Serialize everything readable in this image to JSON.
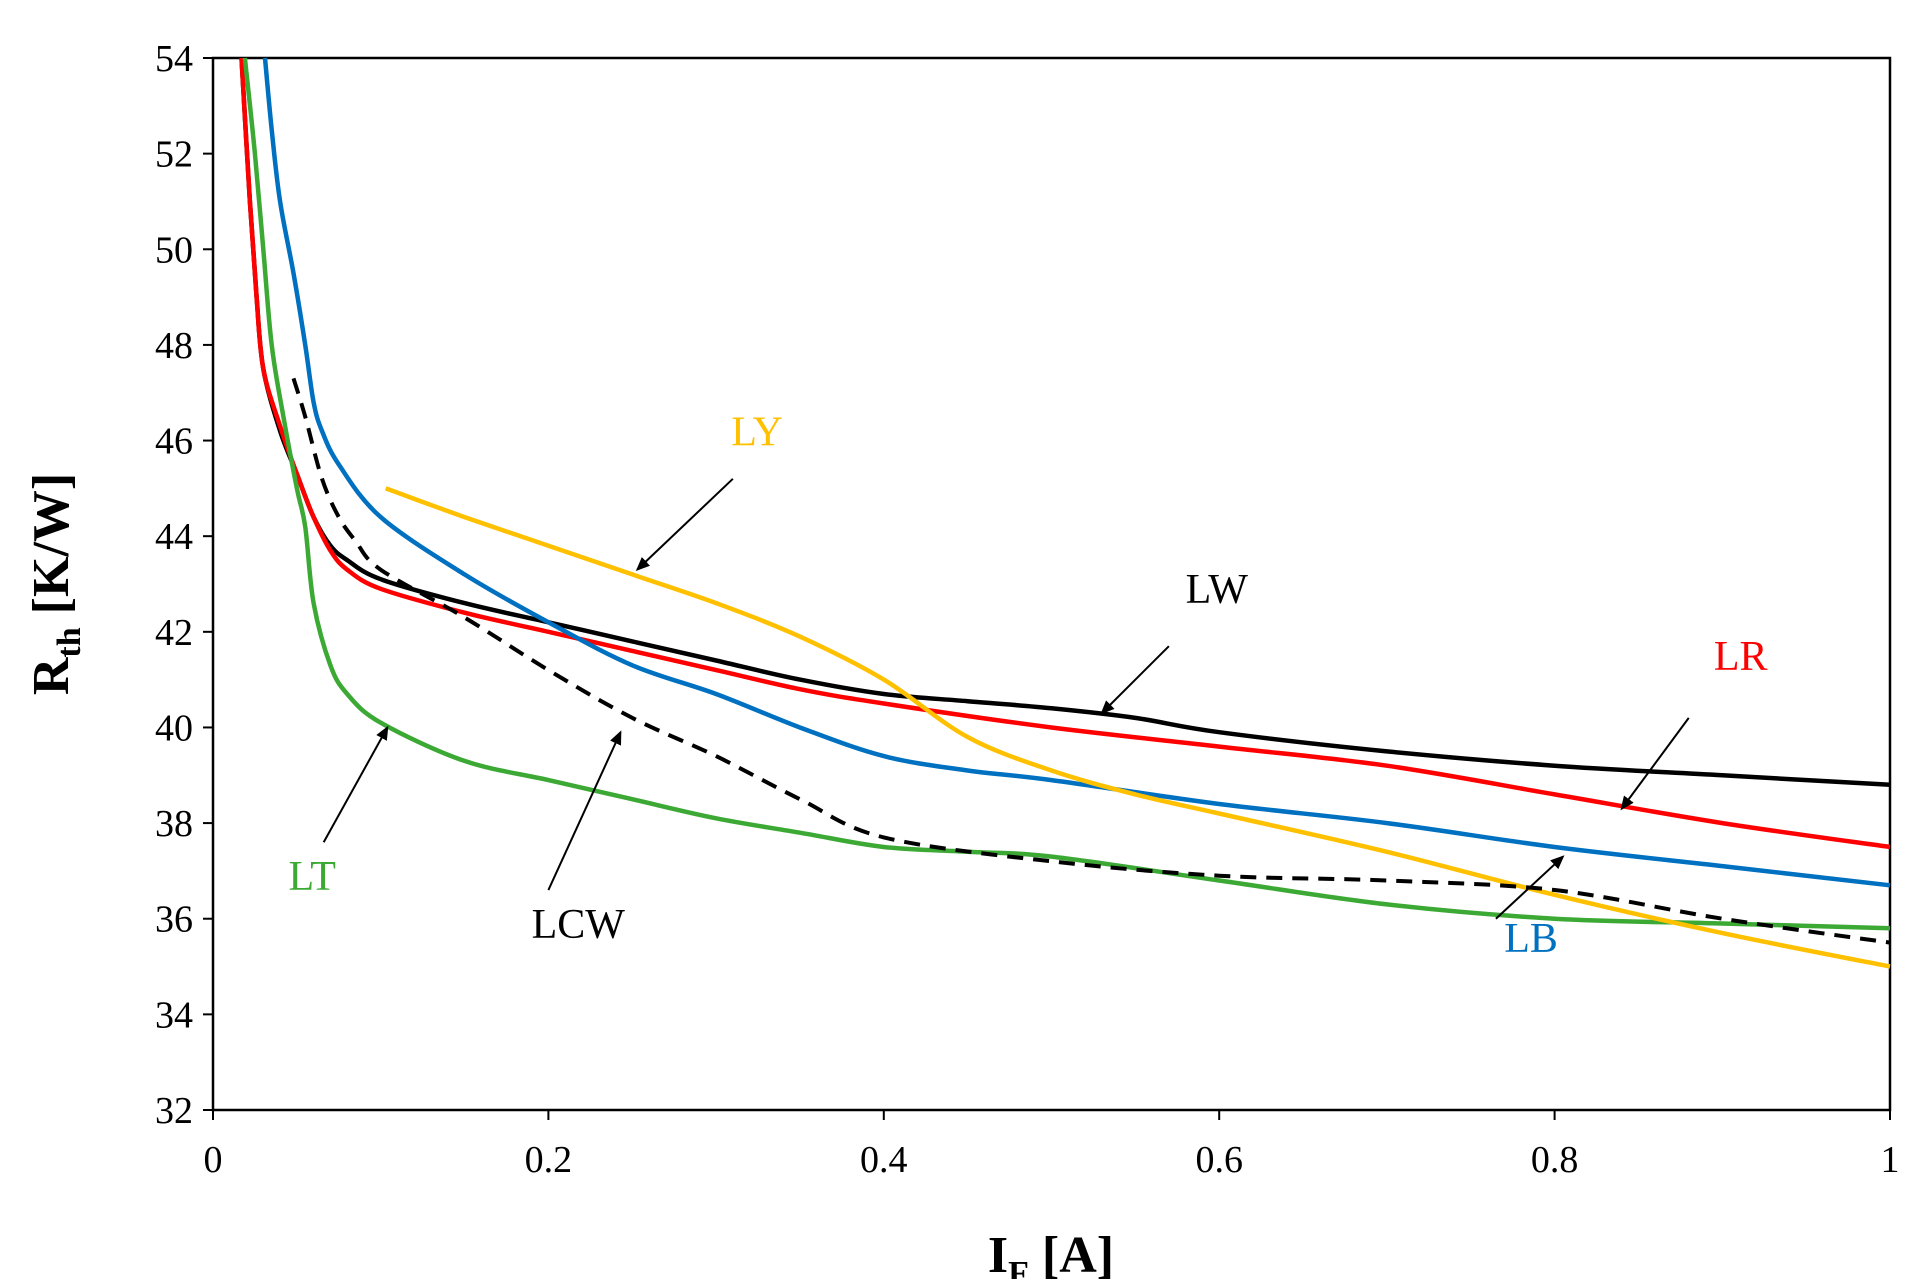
{
  "chart_data": {
    "type": "line",
    "xlabel": {
      "main": "I",
      "sub": "F",
      "unit": " [A]"
    },
    "ylabel": {
      "main": "R",
      "sub": "th",
      "unit": " [K/W]"
    },
    "xlim": [
      0,
      1
    ],
    "ylim": [
      32,
      54
    ],
    "x_ticks": [
      0,
      0.2,
      0.4,
      0.6,
      0.8,
      1
    ],
    "x_tick_labels": [
      "0",
      "0.2",
      "0.4",
      "0.6",
      "0.8",
      "1"
    ],
    "y_ticks": [
      32,
      34,
      36,
      38,
      40,
      42,
      44,
      46,
      48,
      50,
      52,
      54
    ],
    "y_tick_labels": [
      "32",
      "34",
      "36",
      "38",
      "40",
      "42",
      "44",
      "46",
      "48",
      "50",
      "52",
      "54"
    ],
    "grid": false,
    "legend": "none",
    "series": [
      {
        "name": "LW",
        "color": "#000000",
        "dashed": false,
        "points": [
          [
            0.017,
            54
          ],
          [
            0.022,
            51
          ],
          [
            0.026,
            49
          ],
          [
            0.03,
            47.5
          ],
          [
            0.04,
            46.2
          ],
          [
            0.05,
            45.3
          ],
          [
            0.06,
            44.4
          ],
          [
            0.07,
            43.8
          ],
          [
            0.08,
            43.5
          ],
          [
            0.1,
            43.1
          ],
          [
            0.15,
            42.6
          ],
          [
            0.2,
            42.2
          ],
          [
            0.25,
            41.8
          ],
          [
            0.3,
            41.4
          ],
          [
            0.35,
            41
          ],
          [
            0.4,
            40.7
          ],
          [
            0.45,
            40.55
          ],
          [
            0.5,
            40.4
          ],
          [
            0.55,
            40.2
          ],
          [
            0.6,
            39.9
          ],
          [
            0.7,
            39.5
          ],
          [
            0.8,
            39.2
          ],
          [
            0.9,
            39
          ],
          [
            1.0,
            38.8
          ]
        ],
        "label_pos": [
          0.58,
          42.6
        ],
        "arrow": [
          [
            0.57,
            41.7
          ],
          [
            0.53,
            40.3
          ]
        ]
      },
      {
        "name": "LR",
        "color": "#FF0000",
        "dashed": false,
        "points": [
          [
            0.017,
            54
          ],
          [
            0.022,
            51
          ],
          [
            0.026,
            49
          ],
          [
            0.03,
            47.5
          ],
          [
            0.04,
            46.3
          ],
          [
            0.05,
            45.3
          ],
          [
            0.06,
            44.4
          ],
          [
            0.07,
            43.7
          ],
          [
            0.08,
            43.3
          ],
          [
            0.1,
            42.9
          ],
          [
            0.15,
            42.4
          ],
          [
            0.2,
            42
          ],
          [
            0.25,
            41.6
          ],
          [
            0.3,
            41.2
          ],
          [
            0.35,
            40.8
          ],
          [
            0.4,
            40.5
          ],
          [
            0.5,
            40
          ],
          [
            0.6,
            39.6
          ],
          [
            0.7,
            39.2
          ],
          [
            0.8,
            38.6
          ],
          [
            0.9,
            38
          ],
          [
            1.0,
            37.5
          ]
        ],
        "label_pos": [
          0.895,
          41.2
        ],
        "arrow": [
          [
            0.88,
            40.2
          ],
          [
            0.84,
            38.3
          ]
        ]
      },
      {
        "name": "LB",
        "color": "#0070C0",
        "dashed": false,
        "points": [
          [
            0.031,
            54
          ],
          [
            0.035,
            52.5
          ],
          [
            0.04,
            51
          ],
          [
            0.048,
            49.5
          ],
          [
            0.055,
            48
          ],
          [
            0.06,
            46.8
          ],
          [
            0.065,
            46.2
          ],
          [
            0.075,
            45.5
          ],
          [
            0.1,
            44.4
          ],
          [
            0.15,
            43.2
          ],
          [
            0.2,
            42.2
          ],
          [
            0.25,
            41.3
          ],
          [
            0.3,
            40.7
          ],
          [
            0.35,
            40
          ],
          [
            0.4,
            39.4
          ],
          [
            0.45,
            39.1
          ],
          [
            0.5,
            38.9
          ],
          [
            0.6,
            38.4
          ],
          [
            0.7,
            38
          ],
          [
            0.8,
            37.5
          ],
          [
            0.9,
            37.1
          ],
          [
            1.0,
            36.7
          ]
        ],
        "label_pos": [
          0.77,
          35.3
        ],
        "arrow": [
          [
            0.765,
            36
          ],
          [
            0.805,
            37.3
          ]
        ]
      },
      {
        "name": "LT",
        "color": "#3CA935",
        "dashed": false,
        "points": [
          [
            0.019,
            54
          ],
          [
            0.025,
            52
          ],
          [
            0.03,
            50
          ],
          [
            0.035,
            48
          ],
          [
            0.042,
            46.5
          ],
          [
            0.05,
            45
          ],
          [
            0.055,
            44.2
          ],
          [
            0.06,
            42.6
          ],
          [
            0.07,
            41.3
          ],
          [
            0.08,
            40.7
          ],
          [
            0.1,
            40.1
          ],
          [
            0.15,
            39.3
          ],
          [
            0.2,
            38.9
          ],
          [
            0.25,
            38.5
          ],
          [
            0.3,
            38.1
          ],
          [
            0.35,
            37.8
          ],
          [
            0.4,
            37.5
          ],
          [
            0.45,
            37.4
          ],
          [
            0.5,
            37.3
          ],
          [
            0.6,
            36.8
          ],
          [
            0.7,
            36.3
          ],
          [
            0.8,
            36
          ],
          [
            0.9,
            35.9
          ],
          [
            1.0,
            35.8
          ]
        ],
        "label_pos": [
          0.045,
          36.6
        ],
        "arrow": [
          [
            0.066,
            37.6
          ],
          [
            0.104,
            40
          ]
        ]
      },
      {
        "name": "LY",
        "color": "#FFC000",
        "dashed": false,
        "points": [
          [
            0.103,
            45
          ],
          [
            0.15,
            44.4
          ],
          [
            0.2,
            43.8
          ],
          [
            0.25,
            43.2
          ],
          [
            0.3,
            42.6
          ],
          [
            0.35,
            41.9
          ],
          [
            0.4,
            41
          ],
          [
            0.45,
            39.8
          ],
          [
            0.5,
            39.1
          ],
          [
            0.55,
            38.6
          ],
          [
            0.6,
            38.2
          ],
          [
            0.7,
            37.4
          ],
          [
            0.8,
            36.5
          ],
          [
            0.9,
            35.7
          ],
          [
            1.0,
            35
          ]
        ],
        "label_pos": [
          0.309,
          45.9
        ],
        "arrow": [
          [
            0.31,
            45.2
          ],
          [
            0.253,
            43.3
          ]
        ]
      },
      {
        "name": "LCW",
        "color": "#000000",
        "dashed": true,
        "points": [
          [
            0.048,
            47.3
          ],
          [
            0.055,
            46.5
          ],
          [
            0.065,
            45.2
          ],
          [
            0.075,
            44.4
          ],
          [
            0.085,
            43.9
          ],
          [
            0.1,
            43.3
          ],
          [
            0.15,
            42.3
          ],
          [
            0.2,
            41.2
          ],
          [
            0.25,
            40.2
          ],
          [
            0.3,
            39.4
          ],
          [
            0.35,
            38.5
          ],
          [
            0.4,
            37.7
          ],
          [
            0.5,
            37.2
          ],
          [
            0.6,
            36.9
          ],
          [
            0.7,
            36.8
          ],
          [
            0.8,
            36.6
          ],
          [
            0.9,
            36
          ],
          [
            1.0,
            35.5
          ]
        ],
        "label_pos": [
          0.19,
          35.6
        ],
        "arrow": [
          [
            0.2,
            36.6
          ],
          [
            0.243,
            39.9
          ]
        ]
      }
    ]
  }
}
